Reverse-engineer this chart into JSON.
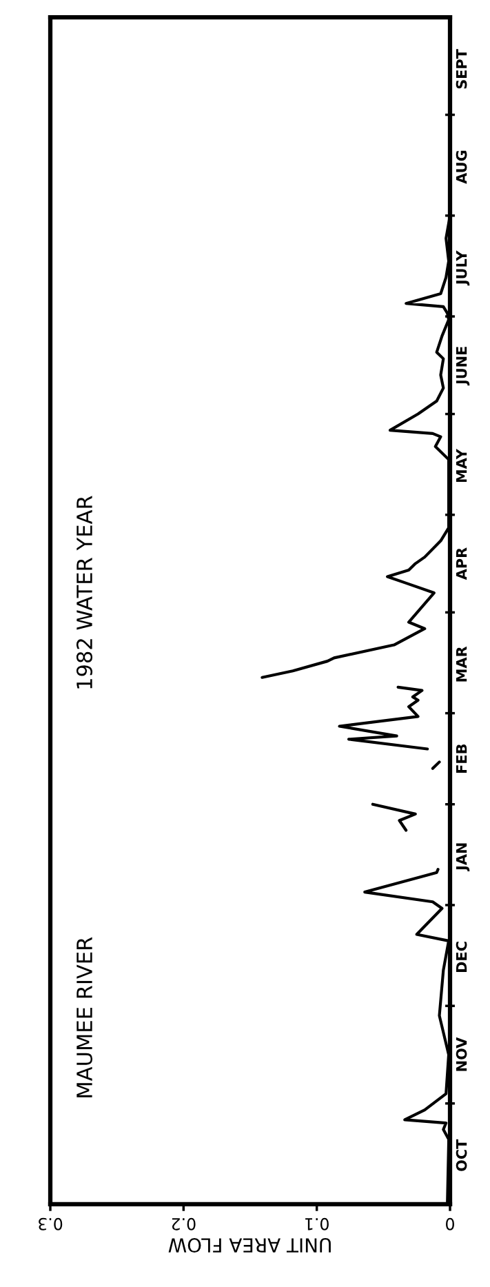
{
  "chart_data": {
    "type": "line",
    "orientation": "horizontal",
    "title": "MAUMEE RIVER",
    "subtitle": "1982 WATER YEAR",
    "xlabel": "UNIT AREA FLOW",
    "xlim": [
      0.3,
      0
    ],
    "xticks": [
      0.3,
      0.2,
      0.1,
      0
    ],
    "ylim": [
      "1981-10-01",
      "1982-10-01"
    ],
    "yticks": [
      {
        "value": "1981-10-16",
        "label": "OCT"
      },
      {
        "value": "1981-11-16",
        "label": "NOV"
      },
      {
        "value": "1981-12-16",
        "label": "DEC"
      },
      {
        "value": "1982-01-16",
        "label": "JAN"
      },
      {
        "value": "1982-02-15",
        "label": "FEB"
      },
      {
        "value": "1982-03-16",
        "label": "MAR"
      },
      {
        "value": "1982-04-16",
        "label": "APR"
      },
      {
        "value": "1982-05-16",
        "label": "MAY"
      },
      {
        "value": "1982-06-16",
        "label": "JUNE"
      },
      {
        "value": "1982-07-16",
        "label": "JULY"
      },
      {
        "value": "1982-08-16",
        "label": "AUG"
      },
      {
        "value": "1982-09-15",
        "label": "SEPT"
      },
      {
        "value": "1981-11-01",
        "label": null
      },
      {
        "value": "1981-12-01",
        "label": null
      },
      {
        "value": "1982-01-01",
        "label": null
      },
      {
        "value": "1982-02-01",
        "label": null
      },
      {
        "value": "1982-03-01",
        "label": null
      },
      {
        "value": "1982-04-01",
        "label": null
      },
      {
        "value": "1982-05-01",
        "label": null
      },
      {
        "value": "1982-06-01",
        "label": null
      },
      {
        "value": "1982-07-01",
        "label": null
      },
      {
        "value": "1982-08-01",
        "label": null
      },
      {
        "value": "1982-09-01",
        "label": null
      }
    ],
    "grid": false,
    "legend": false,
    "marker": "none",
    "line_style": "solid",
    "series": [
      {
        "color": "#000000",
        "x": [
          "1981-10-01",
          "1981-10-20",
          "1981-10-21",
          "1981-10-24",
          "1981-10-26",
          "1981-10-27",
          "1981-10-30",
          "1981-11-04",
          "1981-11-16",
          "1981-11-28",
          "1981-12-12",
          "1981-12-21",
          "1981-12-23",
          "1981-12-31",
          "1982-01-02",
          "1982-01-05",
          "1982-01-11",
          "1982-01-12",
          "1982-01-16",
          "1982-01-24",
          "1982-01-27",
          "1982-01-29",
          "1982-02-01",
          "1982-02-07",
          "1982-02-12",
          "1982-02-14",
          "1982-02-16",
          "1982-02-18",
          "1982-02-21",
          "1982-02-22",
          "1982-02-25",
          "1982-02-28",
          "1982-03-03",
          "1982-03-05",
          "1982-03-06",
          "1982-03-08",
          "1982-03-09",
          "1982-03-10",
          "1982-03-12",
          "1982-03-14",
          "1982-03-17",
          "1982-03-18",
          "1982-03-22",
          "1982-03-27",
          "1982-03-29",
          "1982-04-07",
          "1982-04-10",
          "1982-04-12",
          "1982-04-14",
          "1982-04-16",
          "1982-04-18",
          "1982-04-23",
          "1982-04-27",
          "1982-05-18",
          "1982-05-22",
          "1982-05-25",
          "1982-05-26",
          "1982-05-27",
          "1982-06-01",
          "1982-06-05",
          "1982-06-09",
          "1982-06-13",
          "1982-06-18",
          "1982-06-20",
          "1982-06-25",
          "1982-06-30",
          "1982-07-02",
          "1982-07-04",
          "1982-07-05",
          "1982-07-08",
          "1982-07-13",
          "1982-07-18",
          "1982-07-25",
          "1982-08-01"
        ],
        "values": [
          0.002,
          0.001,
          0.001,
          0.005,
          0.003,
          0.034,
          0.019,
          0.003,
          0.001,
          0.008,
          0.005,
          0.001,
          0.025,
          0.006,
          0.013,
          0.064,
          0.01,
          0.009,
          null,
          0.033,
          0.038,
          0.026,
          0.058,
          null,
          0.013,
          0.008,
          null,
          0.017,
          0.076,
          0.04,
          0.083,
          0.024,
          0.031,
          0.024,
          0.028,
          0.021,
          0.039,
          null,
          0.141,
          0.118,
          0.092,
          0.087,
          0.042,
          0.019,
          0.031,
          0.012,
          0.033,
          0.047,
          0.031,
          0.026,
          0.019,
          0.007,
          0.001,
          0.001,
          0.011,
          0.007,
          0.013,
          0.045,
          0.024,
          0.01,
          0.005,
          0.007,
          0.005,
          0.01,
          0.006,
          0.001,
          0.002,
          0.005,
          0.033,
          0.007,
          0.003,
          0.001,
          0.003,
          0.0
        ]
      }
    ]
  }
}
